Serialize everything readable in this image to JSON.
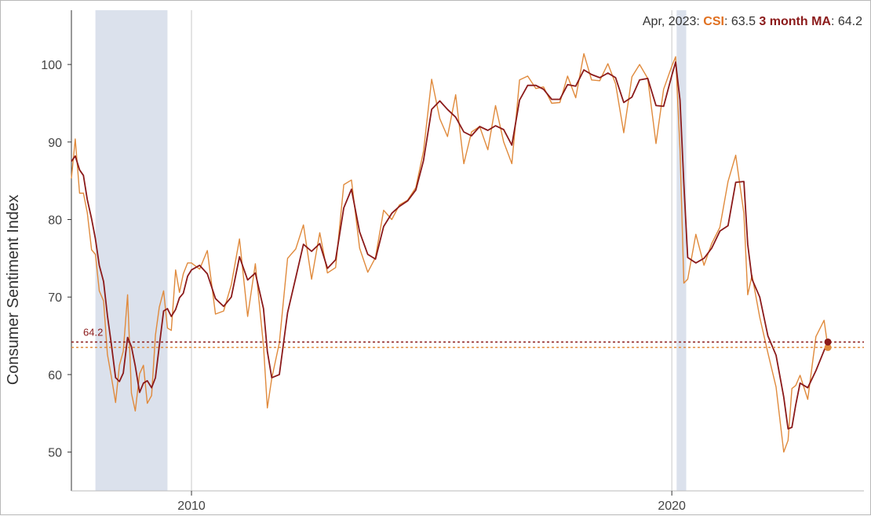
{
  "chart_data": {
    "type": "line",
    "ylabel": "Consumer Sentiment Index",
    "xlim": [
      2007.5,
      2024.0
    ],
    "ylim": [
      45,
      107
    ],
    "y_ticks": [
      50,
      60,
      70,
      80,
      90,
      100
    ],
    "x_ticks": [
      {
        "value": 2010,
        "label": "2010"
      },
      {
        "value": 2020,
        "label": "2020"
      }
    ],
    "vertical_gridlines": [
      2010,
      2020
    ],
    "recessions": [
      {
        "start": 2008.0,
        "end": 2009.5
      },
      {
        "start": 2020.1,
        "end": 2020.3
      }
    ],
    "grid": false,
    "readout": {
      "date": "Apr, 2023",
      "csi_label": "CSI",
      "csi_value": "63.5",
      "ma_label": "3 month MA",
      "ma_value": "64.2"
    },
    "end_label": "64.2",
    "colors": {
      "csi": "#e08a3c",
      "ma": "#8b1a1a",
      "recession": "#dbe1ec",
      "readout_csi": "#e07020"
    },
    "series": [
      {
        "name": "CSI",
        "color": "#e08a3c",
        "x": [
          2007.5,
          2007.58,
          2007.67,
          2007.75,
          2007.83,
          2007.92,
          2008.0,
          2008.08,
          2008.17,
          2008.25,
          2008.33,
          2008.42,
          2008.5,
          2008.58,
          2008.67,
          2008.75,
          2008.83,
          2008.92,
          2009.0,
          2009.08,
          2009.17,
          2009.25,
          2009.33,
          2009.42,
          2009.5,
          2009.58,
          2009.67,
          2009.75,
          2009.83,
          2009.92,
          2010.0,
          2010.17,
          2010.33,
          2010.5,
          2010.67,
          2010.83,
          2011.0,
          2011.17,
          2011.33,
          2011.5,
          2011.58,
          2011.67,
          2011.83,
          2012.0,
          2012.17,
          2012.33,
          2012.5,
          2012.67,
          2012.83,
          2013.0,
          2013.17,
          2013.33,
          2013.5,
          2013.67,
          2013.83,
          2014.0,
          2014.17,
          2014.33,
          2014.5,
          2014.67,
          2014.83,
          2015.0,
          2015.17,
          2015.33,
          2015.5,
          2015.67,
          2015.83,
          2016.0,
          2016.17,
          2016.33,
          2016.5,
          2016.67,
          2016.83,
          2017.0,
          2017.17,
          2017.33,
          2017.5,
          2017.67,
          2017.83,
          2018.0,
          2018.17,
          2018.33,
          2018.5,
          2018.67,
          2018.83,
          2019.0,
          2019.17,
          2019.33,
          2019.5,
          2019.67,
          2019.83,
          2020.0,
          2020.08,
          2020.17,
          2020.25,
          2020.33,
          2020.5,
          2020.67,
          2020.83,
          2021.0,
          2021.17,
          2021.33,
          2021.5,
          2021.58,
          2021.67,
          2021.83,
          2022.0,
          2022.17,
          2022.33,
          2022.42,
          2022.5,
          2022.58,
          2022.67,
          2022.83,
          2023.0,
          2023.17,
          2023.25
        ],
        "y": [
          85.3,
          90.4,
          83.4,
          83.4,
          80.9,
          76.1,
          75.5,
          70.8,
          69.5,
          62.6,
          59.8,
          56.4,
          61.2,
          63.0,
          70.3,
          57.6,
          55.3,
          60.1,
          61.2,
          56.3,
          57.3,
          65.1,
          68.7,
          70.8,
          66.0,
          65.7,
          73.5,
          70.6,
          73.0,
          74.4,
          74.4,
          73.6,
          76.0,
          67.8,
          68.2,
          71.6,
          77.5,
          67.5,
          74.3,
          63.7,
          55.7,
          59.5,
          64.1,
          75.0,
          76.2,
          79.3,
          72.3,
          78.3,
          73.1,
          73.8,
          84.5,
          85.1,
          76.3,
          73.2,
          75.1,
          81.2,
          80.0,
          81.9,
          82.5,
          84.1,
          88.8,
          98.1,
          93.0,
          90.7,
          96.1,
          87.2,
          91.3,
          92.0,
          89.0,
          94.7,
          90.0,
          87.2,
          98.0,
          98.5,
          96.9,
          97.1,
          95.0,
          95.1,
          98.5,
          95.7,
          101.4,
          98.0,
          97.9,
          100.1,
          97.5,
          91.2,
          98.4,
          100.0,
          98.2,
          89.8,
          96.8,
          99.8,
          101.0,
          89.1,
          71.8,
          72.3,
          78.1,
          74.1,
          76.9,
          79.0,
          84.9,
          88.3,
          80.8,
          70.3,
          72.8,
          67.4,
          62.8,
          58.4,
          50.0,
          51.5,
          58.2,
          58.6,
          59.9,
          56.8,
          64.9,
          67.0,
          63.5
        ]
      },
      {
        "name": "3 month MA",
        "color": "#8b1a1a",
        "x": [
          2007.5,
          2007.58,
          2007.67,
          2007.75,
          2007.83,
          2007.92,
          2008.0,
          2008.08,
          2008.17,
          2008.25,
          2008.33,
          2008.42,
          2008.5,
          2008.58,
          2008.67,
          2008.75,
          2008.83,
          2008.92,
          2009.0,
          2009.08,
          2009.17,
          2009.25,
          2009.33,
          2009.42,
          2009.5,
          2009.58,
          2009.67,
          2009.75,
          2009.83,
          2009.92,
          2010.0,
          2010.17,
          2010.33,
          2010.5,
          2010.67,
          2010.83,
          2011.0,
          2011.17,
          2011.33,
          2011.5,
          2011.58,
          2011.67,
          2011.83,
          2012.0,
          2012.17,
          2012.33,
          2012.5,
          2012.67,
          2012.83,
          2013.0,
          2013.17,
          2013.33,
          2013.5,
          2013.67,
          2013.83,
          2014.0,
          2014.17,
          2014.33,
          2014.5,
          2014.67,
          2014.83,
          2015.0,
          2015.17,
          2015.33,
          2015.5,
          2015.67,
          2015.83,
          2016.0,
          2016.17,
          2016.33,
          2016.5,
          2016.67,
          2016.83,
          2017.0,
          2017.17,
          2017.33,
          2017.5,
          2017.67,
          2017.83,
          2018.0,
          2018.17,
          2018.33,
          2018.5,
          2018.67,
          2018.83,
          2019.0,
          2019.17,
          2019.33,
          2019.5,
          2019.67,
          2019.83,
          2020.0,
          2020.08,
          2020.17,
          2020.25,
          2020.33,
          2020.5,
          2020.67,
          2020.83,
          2021.0,
          2021.17,
          2021.33,
          2021.5,
          2021.58,
          2021.67,
          2021.83,
          2022.0,
          2022.17,
          2022.33,
          2022.42,
          2022.5,
          2022.58,
          2022.67,
          2022.83,
          2023.0,
          2023.17,
          2023.25
        ],
        "y": [
          87.5,
          88.2,
          86.4,
          85.7,
          82.6,
          80.1,
          77.5,
          74.1,
          72.0,
          67.6,
          64.0,
          59.6,
          59.1,
          60.2,
          64.8,
          63.6,
          61.1,
          57.7,
          58.9,
          59.2,
          58.3,
          59.6,
          63.7,
          68.2,
          68.5,
          67.5,
          68.4,
          69.9,
          70.5,
          72.7,
          73.5,
          74.1,
          73.0,
          69.8,
          68.8,
          70.0,
          75.2,
          72.2,
          73.1,
          68.5,
          63.0,
          59.6,
          60.0,
          68.0,
          72.5,
          76.8,
          75.9,
          76.9,
          73.7,
          74.8,
          81.5,
          83.9,
          78.4,
          75.5,
          74.9,
          79.1,
          80.8,
          81.7,
          82.4,
          83.8,
          87.6,
          94.2,
          95.3,
          94.2,
          93.2,
          91.3,
          90.8,
          92.0,
          91.5,
          92.1,
          91.6,
          89.6,
          95.4,
          97.3,
          97.3,
          96.8,
          95.5,
          95.5,
          97.4,
          97.2,
          99.3,
          98.7,
          98.3,
          98.9,
          98.3,
          95.1,
          95.8,
          98.0,
          98.2,
          94.7,
          94.6,
          98.6,
          100.3,
          95.4,
          84.6,
          75.1,
          74.4,
          75.0,
          76.3,
          78.5,
          79.2,
          84.8,
          84.9,
          76.8,
          72.3,
          70.0,
          65.0,
          62.5,
          57.1,
          53.0,
          53.2,
          56.1,
          58.9,
          58.3,
          60.5,
          63.1,
          64.2
        ]
      }
    ]
  }
}
